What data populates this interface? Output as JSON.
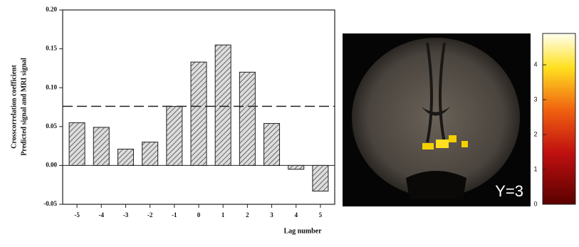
{
  "chart_data": {
    "type": "bar",
    "ylabel": [
      "Crosscorrelation coefficient",
      "Predicted signal and MRI signal"
    ],
    "xlabel": "Lag number",
    "categories": [
      "-5",
      "-4",
      "-3",
      "-2",
      "-1",
      "0",
      "1",
      "2",
      "3",
      "4",
      "5"
    ],
    "values": [
      0.055,
      0.049,
      0.021,
      0.03,
      0.076,
      0.133,
      0.155,
      0.12,
      0.054,
      -0.005,
      -0.033
    ],
    "reference_line": 0.076,
    "ylim": [
      -0.05,
      0.2
    ],
    "yticks": [
      {
        "value": -0.05,
        "label": "-0.05"
      },
      {
        "value": 0,
        "label": "0.00"
      },
      {
        "value": 0.05,
        "label": "0.05"
      },
      {
        "value": 0.1,
        "label": "0.10"
      },
      {
        "value": 0.15,
        "label": "0.15"
      },
      {
        "value": 0.2,
        "label": "0.20"
      }
    ],
    "image_label": "Y=3",
    "colorbar": {
      "lim": [
        0,
        4.9
      ],
      "ticks": [
        0,
        1,
        2,
        3,
        4
      ]
    }
  }
}
